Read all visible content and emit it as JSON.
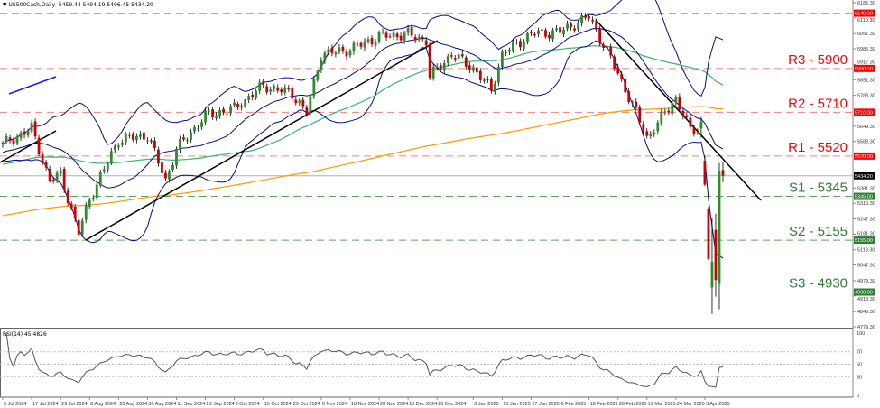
{
  "header": {
    "symbol": "US500Cash,Daily",
    "ohlc": "5459.44 5494.19 5406.45 5434.20"
  },
  "rsi_label": "RSI(14) 45.4826",
  "colors": {
    "bull": "#2e8b2e",
    "bear": "#cc0000",
    "bands": "#0a0a8a",
    "ma_green": "#3cb371",
    "ma_orange": "#ff9900",
    "resistance": "#ff0000",
    "support": "#2e7d32",
    "current": "#b0b0b0"
  },
  "chart_data": {
    "type": "candlestick",
    "title": "",
    "price_axis": {
      "range": [
        4779.3,
        6185.3
      ],
      "ticks": [
        "6185.30",
        "6119.30",
        "6051.30",
        "5985.30",
        "5917.30",
        "5851.30",
        "5783.30",
        "5649.30",
        "5583.30",
        "5381.30",
        "5315.30",
        "5247.30",
        "5181.30",
        "5113.30",
        "5047.30",
        "4979.30",
        "4913.30",
        "4845.30",
        "4779.30"
      ]
    },
    "date_ticks": [
      "5 Jul 2024",
      "17 Jul 2024",
      "29 Jul 2024",
      "8 Aug 2024",
      "20 Aug 2024",
      "30 Aug 2024",
      "11 Sep 2024",
      "23 Sep 2024",
      "3 Oct 2024",
      "15 Oct 2024",
      "25 Oct 2024",
      "6 Nov 2024",
      "18 Nov 2024",
      "28 Nov 2024",
      "10 Dec 2024",
      "20 Dec 2024",
      "3 Jan 2025",
      "15 Jan 2025",
      "27 Jan 2025",
      "6 Feb 2025",
      "18 Feb 2025",
      "28 Feb 2025",
      "12 Mar 2025",
      "24 Mar 2025",
      "3 Apr 2025"
    ],
    "close_path": [
      [
        "2024-07-05",
        5570
      ],
      [
        "2024-07-17",
        5640
      ],
      [
        "2024-07-24",
        5414
      ],
      [
        "2024-07-29",
        5440
      ],
      [
        "2024-08-05",
        5186
      ],
      [
        "2024-08-08",
        5335
      ],
      [
        "2024-08-20",
        5590
      ],
      [
        "2024-08-30",
        5610
      ],
      [
        "2024-09-06",
        5414
      ],
      [
        "2024-09-11",
        5550
      ],
      [
        "2024-09-23",
        5695
      ],
      [
        "2024-10-03",
        5727
      ],
      [
        "2024-10-15",
        5825
      ],
      [
        "2024-10-25",
        5790
      ],
      [
        "2024-10-31",
        5708
      ],
      [
        "2024-11-06",
        5962
      ],
      [
        "2024-11-18",
        5982
      ],
      [
        "2024-11-28",
        6040
      ],
      [
        "2024-12-10",
        6048
      ],
      [
        "2024-12-17",
        6020
      ],
      [
        "2024-12-18",
        5864
      ],
      [
        "2024-12-26",
        5962
      ],
      [
        "2025-01-03",
        5900
      ],
      [
        "2025-01-10",
        5806
      ],
      [
        "2025-01-15",
        5962
      ],
      [
        "2025-01-27",
        6050
      ],
      [
        "2025-02-06",
        6060
      ],
      [
        "2025-02-18",
        6125
      ],
      [
        "2025-02-28",
        5880
      ],
      [
        "2025-03-12",
        5600
      ],
      [
        "2025-03-24",
        5770
      ],
      [
        "2025-03-28",
        5630
      ],
      [
        "2025-04-01",
        5640
      ]
    ],
    "last_bars": [
      {
        "date": "2025-04-02",
        "o": 5640,
        "h": 5690,
        "l": 5600,
        "c": 5670
      },
      {
        "date": "2025-04-03",
        "o": 5500,
        "h": 5520,
        "l": 5390,
        "c": 5396
      },
      {
        "date": "2025-04-04",
        "o": 5290,
        "h": 5300,
        "l": 5069,
        "c": 5074
      },
      {
        "date": "2025-04-07",
        "o": 4950,
        "h": 5250,
        "l": 4835,
        "c": 5062
      },
      {
        "date": "2025-04-08",
        "o": 5200,
        "h": 5270,
        "l": 4910,
        "c": 4982
      },
      {
        "date": "2025-04-09",
        "o": 4965,
        "h": 5490,
        "l": 4855,
        "c": 5456
      },
      {
        "date": "2025-04-10",
        "o": 5459.44,
        "h": 5494.19,
        "l": 5406.45,
        "c": 5434.2
      }
    ],
    "levels": [
      {
        "label": "R3 - 5900",
        "value": 5900,
        "tag": "5900.00",
        "kind": "resistance",
        "show_label": true
      },
      {
        "label": "R2 - 5710",
        "value": 5710,
        "tag": "5710.00",
        "kind": "resistance",
        "show_label": true
      },
      {
        "label": "R1 - 5520",
        "value": 5520,
        "tag": "5520.00",
        "kind": "resistance",
        "show_label": true
      },
      {
        "label": "S1 - 5345",
        "value": 5345,
        "tag": "5345.00",
        "kind": "support",
        "show_label": true
      },
      {
        "label": "S2 - 5155",
        "value": 5155,
        "tag": "5155.00",
        "kind": "support",
        "show_label": true
      },
      {
        "label": "S3 - 4930",
        "value": 4930,
        "tag": "4930.00",
        "kind": "support",
        "show_label": true
      },
      {
        "label": "",
        "value": 6140,
        "tag": "6140.00",
        "kind": "resistance",
        "show_label": false
      }
    ],
    "current_price": {
      "value": 5434.2,
      "tag": "5434.20"
    },
    "rsi": {
      "period": 14,
      "value": 45.4826,
      "range": [
        0,
        100
      ],
      "levels": [
        70,
        50,
        30
      ],
      "tick_labels": [
        "100",
        "70",
        "50",
        "30",
        "0"
      ]
    }
  }
}
